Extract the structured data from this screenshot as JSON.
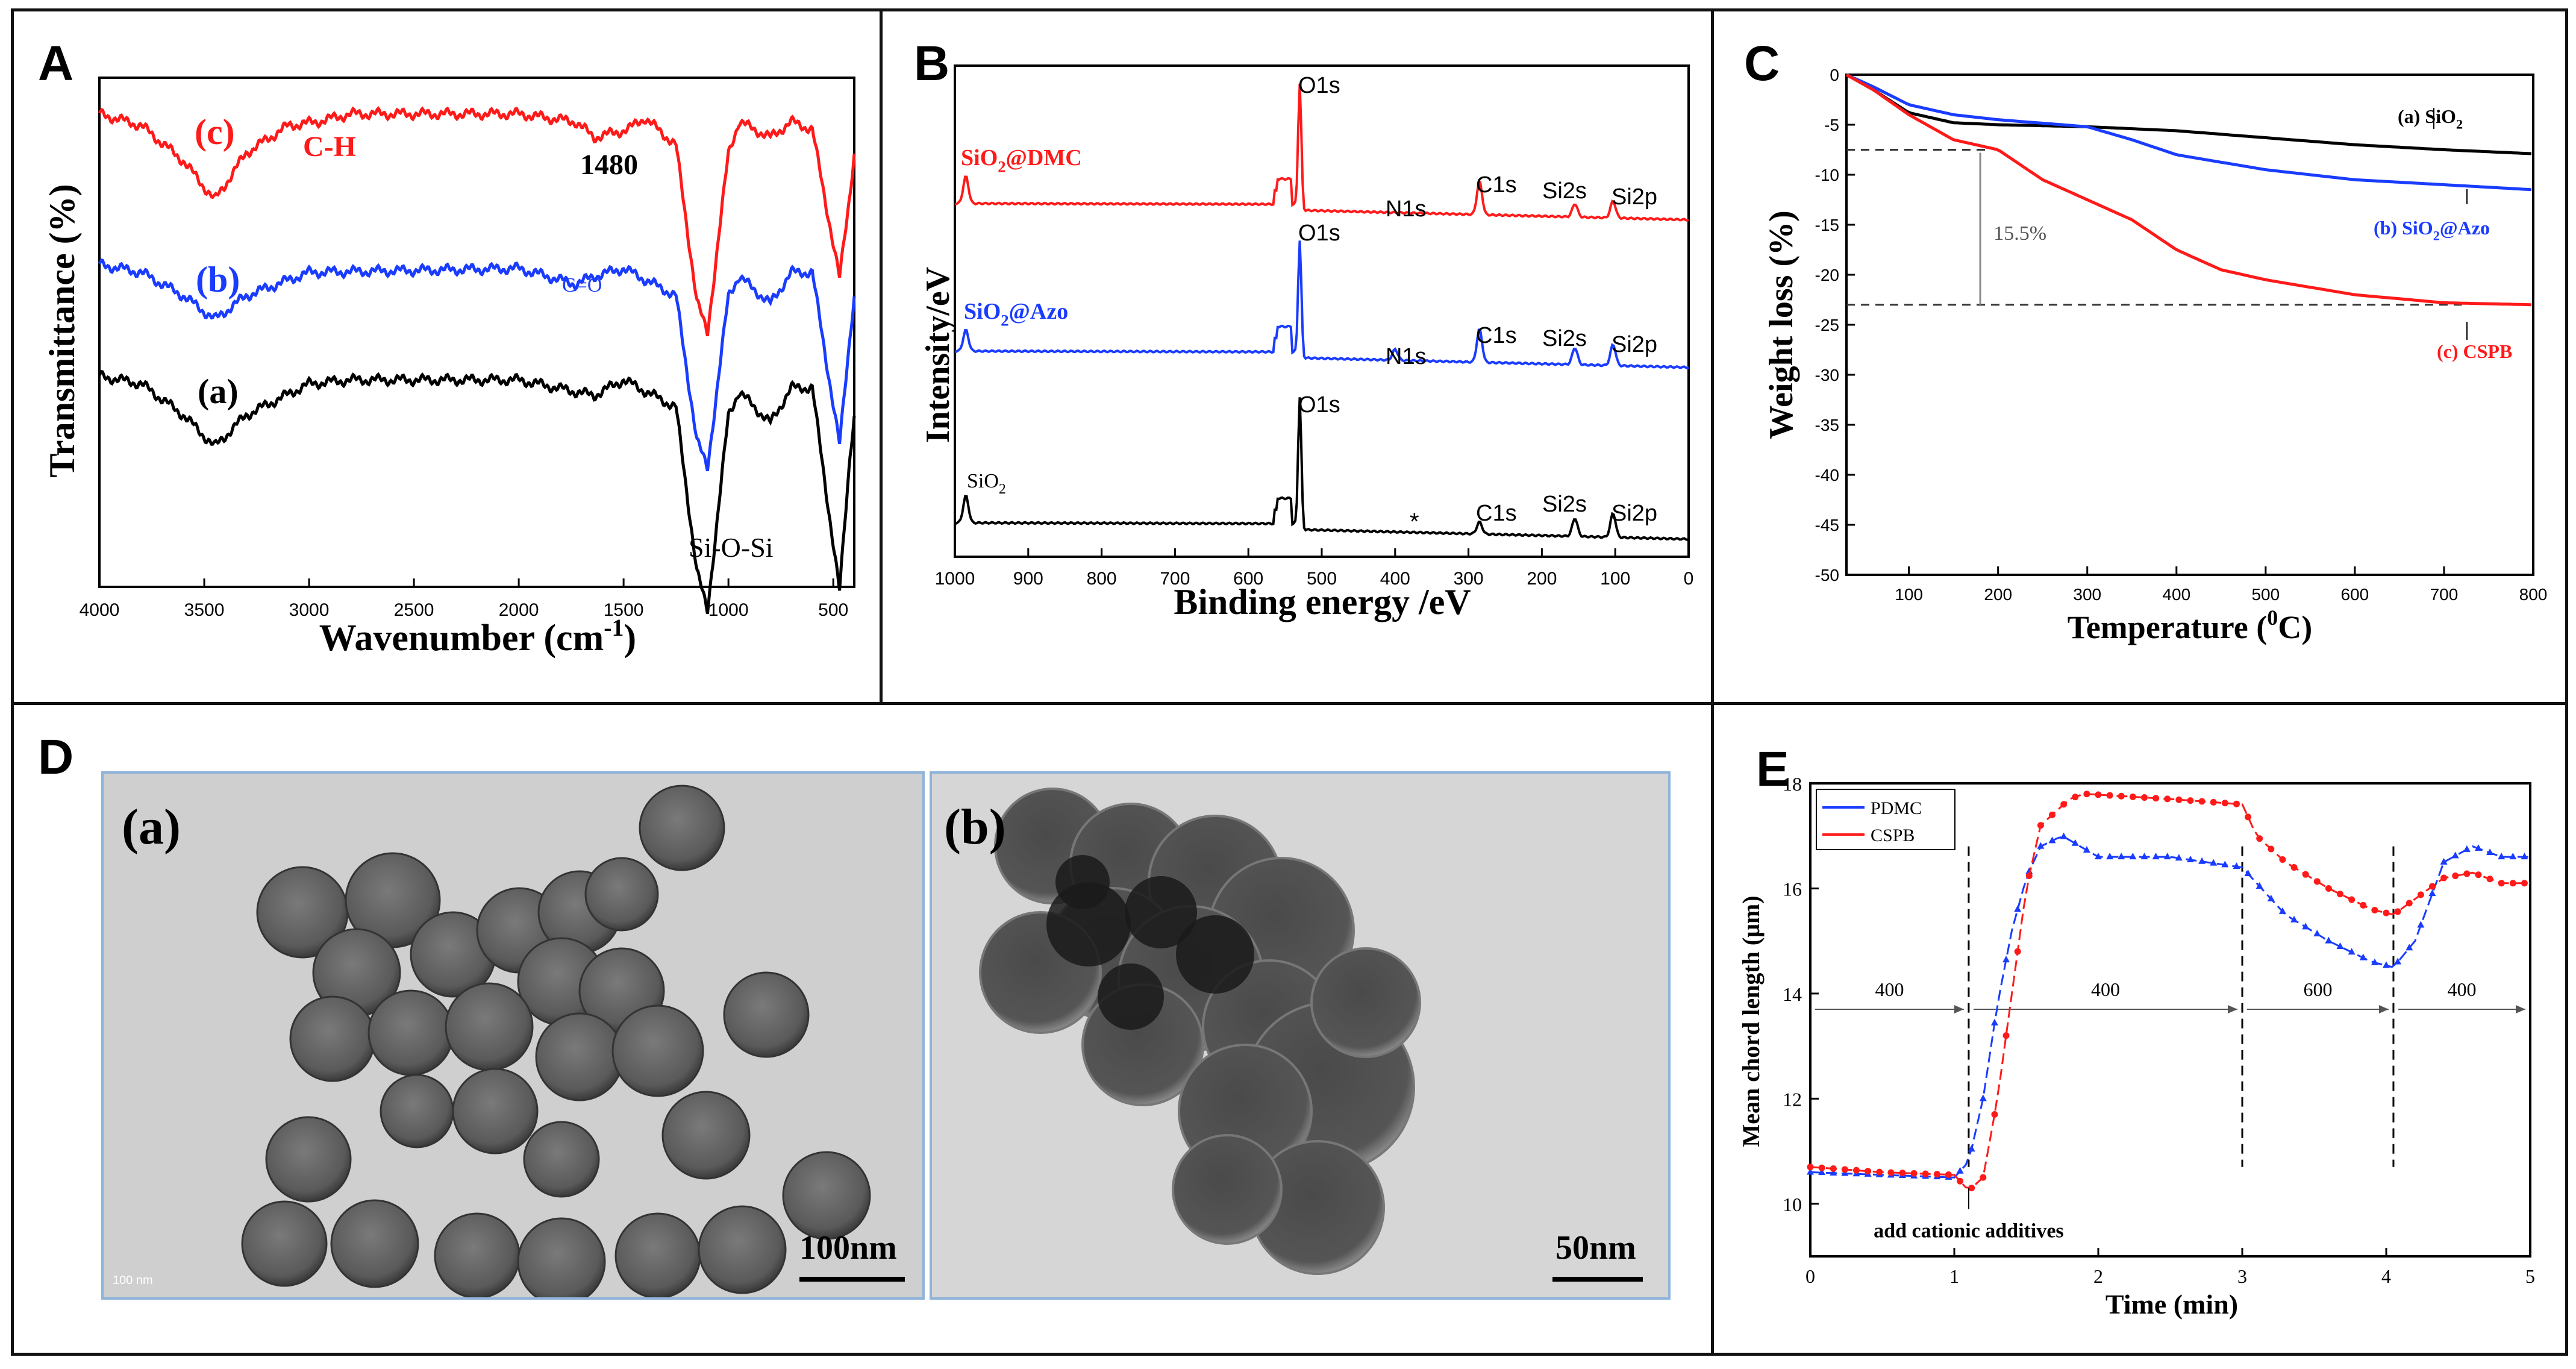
{
  "panels": {
    "A": {
      "letter": "A"
    },
    "B": {
      "letter": "B"
    },
    "C": {
      "letter": "C"
    },
    "D": {
      "letter": "D"
    },
    "E": {
      "letter": "E"
    }
  },
  "tem": {
    "a_label": "(a)",
    "b_label": "(b)",
    "a_scale": "100nm",
    "b_scale": "50nm",
    "a_small": "100 nm"
  },
  "chart_data": [
    {
      "id": "A",
      "type": "line",
      "title": "",
      "xlabel": "Wavenumber (cm",
      "xlabel_sup": "-1",
      "xlabel_end": ")",
      "ylabel": "Transmittance (%)",
      "xlim": [
        4000,
        400
      ],
      "xticks": [
        4000,
        3500,
        3000,
        2500,
        2000,
        1500,
        1000,
        500
      ],
      "series": [
        {
          "name": "(a)",
          "color": "#000000",
          "offset": 0,
          "x": [
            4000,
            3800,
            3600,
            3450,
            3300,
            3000,
            2800,
            2000,
            1640,
            1500,
            1250,
            1150,
            1100,
            1000,
            950,
            800,
            700,
            600,
            470,
            420,
            400
          ],
          "y": [
            0,
            -2,
            -10,
            -18,
            -10,
            -2,
            -1,
            -1,
            -5,
            -1,
            -8,
            -50,
            -60,
            -10,
            -4,
            -12,
            -3,
            -3,
            -55,
            -20,
            -10
          ]
        },
        {
          "name": "(b)",
          "color": "#1a3cff",
          "offset": 0,
          "x": [
            4000,
            3800,
            3600,
            3450,
            3300,
            3000,
            2000,
            1730,
            1640,
            1500,
            1250,
            1150,
            1100,
            1000,
            950,
            800,
            700,
            600,
            470,
            420,
            400
          ],
          "y": [
            0,
            -2,
            -8,
            -14,
            -8,
            -2,
            -1,
            -5,
            -3,
            -1,
            -8,
            -45,
            -52,
            -8,
            -3,
            -10,
            -2,
            -2,
            -46,
            -18,
            -8
          ]
        },
        {
          "name": "(c)",
          "color": "#ff1a1a",
          "offset": 0,
          "x": [
            4000,
            3800,
            3600,
            3450,
            3300,
            3100,
            2960,
            2800,
            2000,
            1730,
            1640,
            1480,
            1400,
            1250,
            1150,
            1100,
            1000,
            950,
            800,
            700,
            600,
            470,
            420,
            400
          ],
          "y": [
            0,
            -3,
            -12,
            -22,
            -10,
            -3,
            -2,
            0,
            0,
            -2,
            -6,
            -4,
            -1,
            -8,
            -48,
            -56,
            -10,
            -2,
            -6,
            -2,
            -4,
            -42,
            -20,
            -10
          ]
        }
      ],
      "annotations": {
        "c_label": "(c)",
        "b_label": "(b)",
        "a_label": "(a)",
        "ch": "C-H",
        "p1480": "1480",
        "co": "C=O",
        "sios": "Si-O-Si"
      }
    },
    {
      "id": "B",
      "type": "line",
      "title": "",
      "xlabel": "Binding energy /eV",
      "ylabel": "Intensity/eV",
      "xlim": [
        1000,
        0
      ],
      "xticks": [
        1000,
        900,
        800,
        700,
        600,
        500,
        400,
        300,
        200,
        100,
        0
      ],
      "series": [
        {
          "name": "SiO2@DMC",
          "color": "#ff1a1a"
        },
        {
          "name": "SiO2@Azo",
          "color": "#1a3cff"
        },
        {
          "name": "SiO2",
          "color": "#000000"
        }
      ],
      "peaks": {
        "o1s": "O1s",
        "n1s": "N1s",
        "c1s": "C1s",
        "si2s": "Si2s",
        "si2p": "Si2p",
        "star": "*"
      },
      "labels": {
        "dmc_main": "SiO",
        "dmc_sub": "2",
        "dmc_tail": "@DMC",
        "azo_main": "SiO",
        "azo_sub": "2",
        "azo_tail": "@Azo",
        "sio2_main": "SiO",
        "sio2_sub": "2"
      }
    },
    {
      "id": "C",
      "type": "line",
      "title": "",
      "xlabel": "Temperature (",
      "xlabel_sup": "0",
      "xlabel_end": "C)",
      "ylabel": "Weight loss (%)",
      "xlim": [
        30,
        800
      ],
      "ylim": [
        -50,
        0
      ],
      "xticks": [
        100,
        200,
        300,
        400,
        500,
        600,
        700,
        800
      ],
      "yticks": [
        0,
        -5,
        -10,
        -15,
        -20,
        -25,
        -30,
        -35,
        -40,
        -45,
        -50
      ],
      "series": [
        {
          "name": "(a) SiO2",
          "color": "#000000",
          "x": [
            30,
            60,
            100,
            150,
            200,
            300,
            400,
            500,
            600,
            700,
            800
          ],
          "y": [
            0,
            -1.5,
            -3.8,
            -4.8,
            -5.0,
            -5.2,
            -5.6,
            -6.3,
            -7.0,
            -7.5,
            -7.9
          ]
        },
        {
          "name": "(b) SiO2@Azo",
          "color": "#1a3cff",
          "x": [
            30,
            60,
            100,
            150,
            200,
            300,
            350,
            400,
            500,
            600,
            700,
            800
          ],
          "y": [
            0,
            -1.2,
            -3.0,
            -4.0,
            -4.5,
            -5.2,
            -6.5,
            -8.0,
            -9.5,
            -10.5,
            -11.0,
            -11.5
          ]
        },
        {
          "name": "(c) CSPB",
          "color": "#ff1a1a",
          "x": [
            30,
            60,
            100,
            150,
            200,
            250,
            300,
            350,
            400,
            450,
            500,
            600,
            700,
            800
          ],
          "y": [
            0,
            -1.5,
            -4.0,
            -6.5,
            -7.5,
            -10.5,
            -12.5,
            -14.5,
            -17.5,
            -19.5,
            -20.5,
            -22.0,
            -22.8,
            -23.0
          ]
        }
      ],
      "annotations": {
        "pct": "15.5%",
        "a_label": "(a) SiO",
        "a_sub": "2",
        "b_label": "(b) SiO",
        "b_sub": "2",
        "b_tail": "@Azo",
        "c_label": "(c) CSPB"
      }
    },
    {
      "id": "E",
      "type": "line",
      "title": "",
      "xlabel": "Time (min)",
      "ylabel": "Mean chord length (μm)",
      "xlim": [
        0,
        5
      ],
      "ylim": [
        9,
        18
      ],
      "xticks": [
        0,
        1,
        2,
        3,
        4,
        5
      ],
      "yticks": [
        10,
        12,
        14,
        16,
        18
      ],
      "series": [
        {
          "name": "PDMC",
          "color": "#1a3cff",
          "x": [
            0,
            0.5,
            1.0,
            1.1,
            1.2,
            1.3,
            1.4,
            1.5,
            1.6,
            1.75,
            2.0,
            2.5,
            3.0,
            3.3,
            3.6,
            3.9,
            4.05,
            4.2,
            4.4,
            4.6,
            4.8,
            5.0
          ],
          "y": [
            10.6,
            10.55,
            10.5,
            10.8,
            12.0,
            13.8,
            15.2,
            16.2,
            16.8,
            17.0,
            16.6,
            16.6,
            16.4,
            15.5,
            15.0,
            14.6,
            14.5,
            15.0,
            16.5,
            16.8,
            16.6,
            16.6
          ]
        },
        {
          "name": "CSPB",
          "color": "#ff1a1a",
          "x": [
            0,
            0.5,
            1.0,
            1.1,
            1.2,
            1.3,
            1.4,
            1.5,
            1.6,
            1.8,
            1.9,
            2.5,
            3.0,
            3.1,
            3.3,
            3.6,
            3.9,
            4.05,
            4.2,
            4.4,
            4.6,
            4.8,
            5.0
          ],
          "y": [
            10.7,
            10.6,
            10.55,
            10.25,
            10.5,
            12.0,
            14.0,
            16.0,
            17.2,
            17.7,
            17.8,
            17.7,
            17.6,
            17.0,
            16.5,
            16.0,
            15.6,
            15.5,
            15.8,
            16.2,
            16.3,
            16.1,
            16.1
          ]
        }
      ],
      "markers": [
        1.1,
        3.0,
        4.05
      ],
      "segments": [
        "400",
        "400",
        "600",
        "400"
      ],
      "annotation": "add cationic additives"
    }
  ]
}
